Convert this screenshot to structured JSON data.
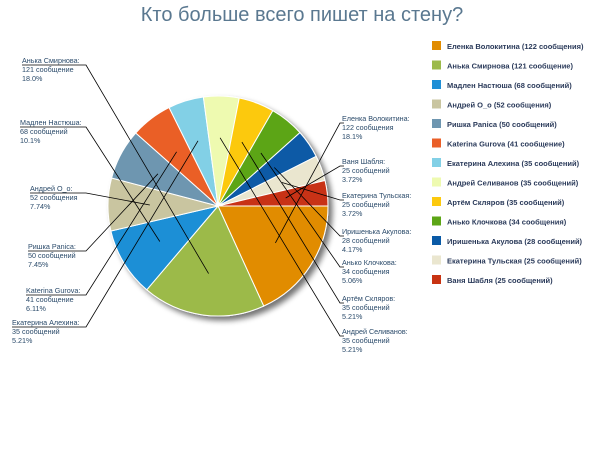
{
  "chart_data": {
    "type": "pie",
    "title": "Кто больше всего пишет на стену?",
    "slices": [
      {
        "name": "Еленка Волокитина",
        "value": 122,
        "unit": "сообщения",
        "percent": "18.1%",
        "legend": "Еленка Волокитина (122 сообщения)",
        "color": "#e18c00"
      },
      {
        "name": "Анька Смирнова",
        "value": 121,
        "unit": "сообщение",
        "percent": "18.0%",
        "legend": "Анька Смирнова (121 сообщение)",
        "color": "#9cba4a"
      },
      {
        "name": "Мадлен Настюша",
        "value": 68,
        "unit": "сообщений",
        "percent": "10.1%",
        "legend": "Мадлен Настюша (68 сообщений)",
        "color": "#1f8fd6"
      },
      {
        "name": "Андрей О_о",
        "value": 52,
        "unit": "сообщения",
        "percent": "7.74%",
        "legend": "Андрей О_о (52 сообщения)",
        "color": "#c9c5a0"
      },
      {
        "name": "Ришка Panica",
        "value": 50,
        "unit": "сообщений",
        "percent": "7.45%",
        "legend": "Ришка Panica (50 сообщений)",
        "color": "#6e96b0"
      },
      {
        "name": "Katerina Gurova",
        "value": 41,
        "unit": "сообщение",
        "percent": "6.11%",
        "legend": "Katerina Gurova (41 сообщение)",
        "color": "#ea5f28"
      },
      {
        "name": "Екатерина Алехина",
        "value": 35,
        "unit": "сообщений",
        "percent": "5.21%",
        "legend": "Екатерина Алехина (35 сообщений)",
        "color": "#82d0e6"
      },
      {
        "name": "Андрей Селиванов",
        "value": 35,
        "unit": "сообщений",
        "percent": "5.21%",
        "legend": "Андрей Селиванов (35 сообщений)",
        "color": "#eefab0"
      },
      {
        "name": "Артём Скляров",
        "value": 35,
        "unit": "сообщений",
        "percent": "5.21%",
        "legend": "Артём Скляров (35 сообщений)",
        "color": "#fcc90e"
      },
      {
        "name": "Анько Клочкова",
        "value": 34,
        "unit": "сообщения",
        "percent": "5.06%",
        "legend": "Анько Клочкова (34 сообщения)",
        "color": "#5ca516"
      },
      {
        "name": "Иришенька Акулова",
        "value": 28,
        "unit": "сообщений",
        "percent": "4.17%",
        "legend": "Иришенька Акулова (28 сообщений)",
        "color": "#0a5aa6"
      },
      {
        "name": "Екатерина Тульская",
        "value": 25,
        "unit": "сообщений",
        "percent": "3.72%",
        "legend": "Екатерина Тульская (25 сообщений)",
        "color": "#eae6cf"
      },
      {
        "name": "Ваня Шабля",
        "value": 25,
        "unit": "сообщений",
        "percent": "3.72%",
        "legend": "Ваня Шабля (25 сообщений)",
        "color": "#c83312"
      }
    ],
    "legend_position": "right"
  }
}
